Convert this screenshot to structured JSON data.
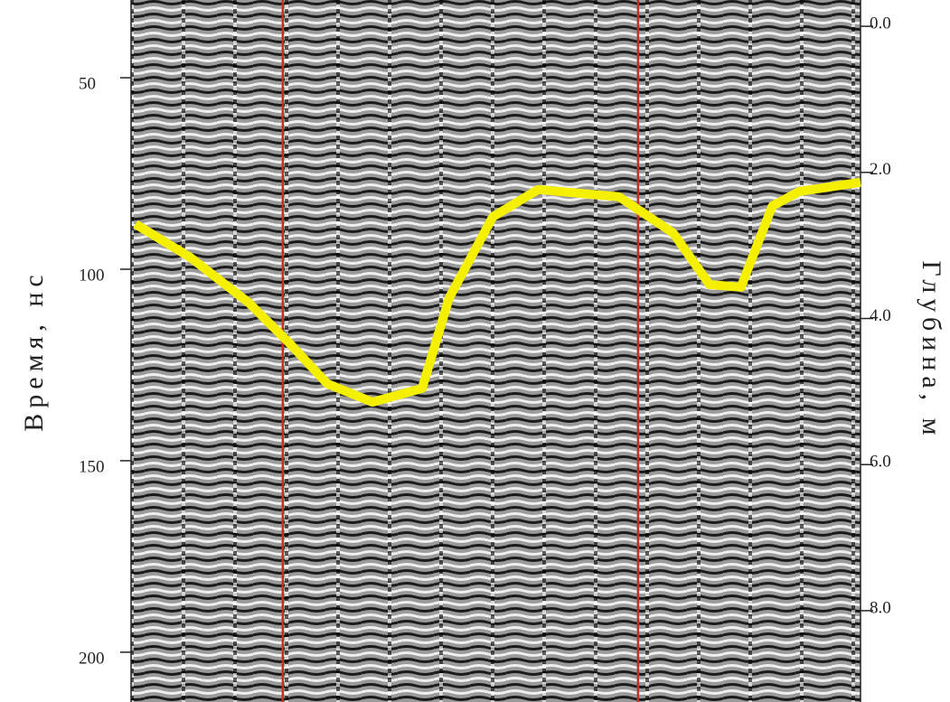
{
  "chart_data": {
    "type": "line",
    "y_label": "Время, нс",
    "y2_label": "Глубина, м",
    "x": [
      0.6,
      8.1,
      16.1,
      21.7,
      26.9,
      33.1,
      39.9,
      43.6,
      49.6,
      55.8,
      66.9,
      74.3,
      79.3,
      83.6,
      87.9,
      91.6,
      100
    ],
    "xlim": [
      0,
      100
    ],
    "series": [
      {
        "color": "#f5f000",
        "values": [
          88.2,
          96.9,
          108.7,
          119.3,
          129.9,
          134.7,
          131.1,
          107.5,
          86.3,
          79.2,
          81.1,
          90.5,
          104.0,
          104.7,
          83.5,
          79.7,
          77.3
        ]
      }
    ],
    "ylim": [
      29.7,
      213.0
    ],
    "y_inverted": true,
    "yticks": [
      50,
      100,
      150,
      200
    ],
    "y2lim": [
      -0.36,
      9.25
    ],
    "y2ticks": [
      {
        "value": 0,
        "label": "0.0"
      },
      {
        "value": 2,
        "label": "2.0"
      },
      {
        "value": 4,
        "label": "4.0"
      },
      {
        "value": 6,
        "label": "6.0"
      },
      {
        "value": 8,
        "label": "8.0"
      }
    ],
    "marker_lines_x": [
      20.8,
      69.5
    ],
    "marker_color": "#c0302a"
  }
}
